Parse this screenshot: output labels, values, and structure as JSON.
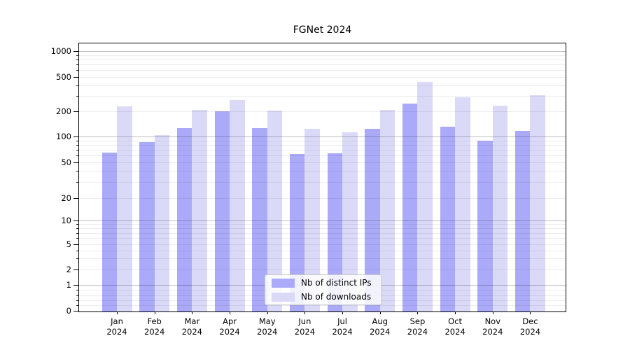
{
  "page": {
    "background": "#ffffff"
  },
  "chart_data": {
    "type": "bar",
    "title": "FGNet 2024",
    "categories": [
      "Jan 2024",
      "Feb 2024",
      "Mar 2024",
      "Apr 2024",
      "May 2024",
      "Jun 2024",
      "Jul 2024",
      "Aug 2024",
      "Sep 2024",
      "Oct 2024",
      "Nov 2024",
      "Dec 2024"
    ],
    "series": [
      {
        "name": "Nb of distinct IPs",
        "color": "#aaaaf8",
        "values": [
          65,
          86,
          125,
          200,
          125,
          63,
          64,
          123,
          245,
          130,
          89,
          116
        ]
      },
      {
        "name": "Nb of downloads",
        "color": "#dadaf8",
        "values": [
          227,
          103,
          204,
          266,
          201,
          123,
          113,
          207,
          435,
          290,
          230,
          305
        ]
      }
    ],
    "xlabel": "",
    "ylabel": "",
    "yscale": "symlog",
    "ylim": [
      0,
      1070
    ],
    "y_ticks": [
      0,
      1,
      2,
      5,
      10,
      20,
      50,
      100,
      200,
      500,
      1000
    ],
    "y_major_gridlines": [
      1,
      10,
      100,
      1000
    ],
    "y_minor_gridlines": [
      0.2,
      0.4,
      0.6,
      0.8,
      2,
      3,
      4,
      5,
      6,
      7,
      8,
      9,
      20,
      30,
      40,
      50,
      60,
      70,
      80,
      90,
      200,
      300,
      400,
      500,
      600,
      700,
      800,
      900
    ],
    "grid": true,
    "legend_position": "lower center",
    "axis_color": "#000000"
  }
}
